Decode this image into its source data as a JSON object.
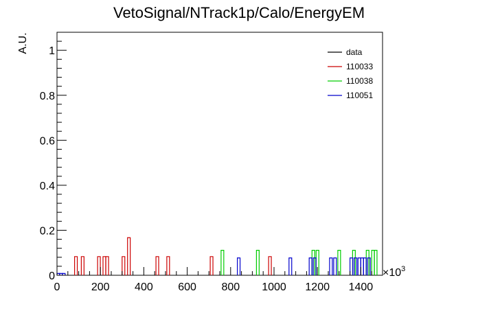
{
  "chart_data": {
    "type": "histogram",
    "title": "VetoSignal/NTrack1p/Calo/EnergyEM",
    "xlabel": "",
    "ylabel": "A.U.",
    "x_multiplier_label": "×10",
    "x_multiplier_exp": "3",
    "xlim": [
      0,
      1500
    ],
    "ylim": [
      0,
      1.08
    ],
    "x_ticks": [
      0,
      200,
      400,
      600,
      800,
      1000,
      1200,
      1400
    ],
    "x_tick_labels": [
      "0",
      "200",
      "400",
      "600",
      "800",
      "1000",
      "1200",
      "1400"
    ],
    "y_ticks": [
      0,
      0.2,
      0.4,
      0.6,
      0.8,
      1
    ],
    "y_tick_labels": [
      "0",
      "0.2",
      "0.4",
      "0.6",
      "0.8",
      "1"
    ],
    "bin_width": 12.5,
    "legend_position": "top-right",
    "series": [
      {
        "name": "data",
        "color": "#000000",
        "bins": []
      },
      {
        "name": "110033",
        "color": "#cc0000",
        "bins": [
          [
            81,
            0.083
          ],
          [
            112,
            0.083
          ],
          [
            187,
            0.083
          ],
          [
            212,
            0.083
          ],
          [
            225,
            0.083
          ],
          [
            300,
            0.083
          ],
          [
            325,
            0.167
          ],
          [
            456,
            0.083
          ],
          [
            506,
            0.083
          ],
          [
            706,
            0.083
          ],
          [
            975,
            0.083
          ]
        ]
      },
      {
        "name": "110038",
        "color": "#00cc00",
        "bins": [
          [
            756,
            0.111
          ],
          [
            919,
            0.111
          ],
          [
            1175,
            0.111
          ],
          [
            1194,
            0.111
          ],
          [
            1294,
            0.111
          ],
          [
            1362,
            0.111
          ],
          [
            1425,
            0.111
          ],
          [
            1450,
            0.111
          ],
          [
            1462,
            0.111
          ]
        ]
      },
      {
        "name": "110051",
        "color": "#0000cc",
        "bins": [
          [
            0,
            0.008
          ],
          [
            12,
            0.008
          ],
          [
            25,
            0.008
          ],
          [
            831,
            0.077
          ],
          [
            1069,
            0.077
          ],
          [
            1162,
            0.077
          ],
          [
            1181,
            0.077
          ],
          [
            1256,
            0.077
          ],
          [
            1275,
            0.077
          ],
          [
            1350,
            0.077
          ],
          [
            1369,
            0.077
          ],
          [
            1387,
            0.077
          ],
          [
            1400,
            0.077
          ],
          [
            1412,
            0.077
          ],
          [
            1431,
            0.077
          ]
        ]
      }
    ]
  }
}
